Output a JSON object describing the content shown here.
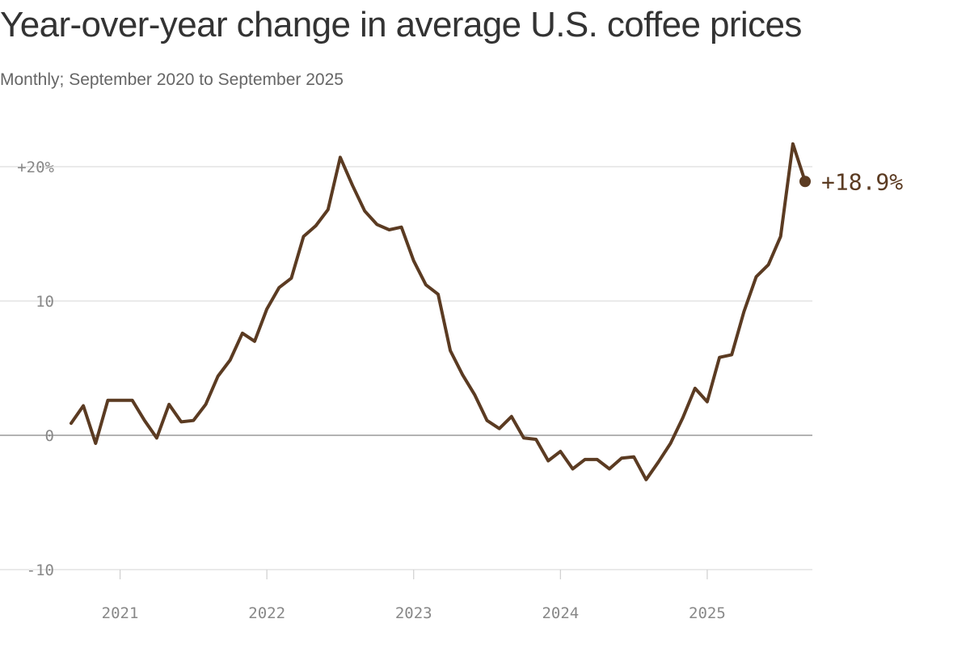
{
  "header": {
    "title": "Year-over-year change in average U.S. coffee prices",
    "subtitle": "Monthly; September 2020 to September 2025"
  },
  "chart_data": {
    "type": "line",
    "title": "Year-over-year change in average U.S. coffee prices",
    "subtitle": "Monthly; September 2020 to September 2025",
    "xlabel": "",
    "ylabel": "",
    "unit": "%",
    "ylim": [
      -10,
      23
    ],
    "grid": true,
    "line_color": "#5b3b22",
    "y_ticks": [
      {
        "value": 20,
        "label": "+20%"
      },
      {
        "value": 10,
        "label": "10"
      },
      {
        "value": 0,
        "label": "0"
      },
      {
        "value": -10,
        "label": "-10"
      }
    ],
    "x_ticks": [
      {
        "value": "2021-01",
        "label": "2021"
      },
      {
        "value": "2022-01",
        "label": "2022"
      },
      {
        "value": "2023-01",
        "label": "2023"
      },
      {
        "value": "2024-01",
        "label": "2024"
      },
      {
        "value": "2025-01",
        "label": "2025"
      }
    ],
    "end_label": "+18.9%",
    "series": [
      {
        "x": [
          "2020-09",
          "2020-10",
          "2020-11",
          "2020-12",
          "2021-01",
          "2021-02",
          "2021-03",
          "2021-04",
          "2021-05",
          "2021-06",
          "2021-07",
          "2021-08",
          "2021-09",
          "2021-10",
          "2021-11",
          "2021-12",
          "2022-01",
          "2022-02",
          "2022-03",
          "2022-04",
          "2022-05",
          "2022-06",
          "2022-07",
          "2022-08",
          "2022-09",
          "2022-10",
          "2022-11",
          "2022-12",
          "2023-01",
          "2023-02",
          "2023-03",
          "2023-04",
          "2023-05",
          "2023-06",
          "2023-07",
          "2023-08",
          "2023-09",
          "2023-10",
          "2023-11",
          "2023-12",
          "2024-01",
          "2024-02",
          "2024-03",
          "2024-04",
          "2024-05",
          "2024-06",
          "2024-07",
          "2024-08",
          "2024-09",
          "2024-10",
          "2024-11",
          "2024-12",
          "2025-01",
          "2025-02",
          "2025-03",
          "2025-04",
          "2025-05",
          "2025-06",
          "2025-07",
          "2025-08",
          "2025-09"
        ],
        "values": [
          0.9,
          2.2,
          -0.6,
          2.6,
          2.6,
          2.6,
          1.1,
          -0.2,
          2.3,
          1.0,
          1.1,
          2.3,
          4.4,
          5.6,
          7.6,
          7.0,
          9.4,
          11.0,
          11.7,
          14.8,
          15.6,
          16.8,
          20.7,
          18.6,
          16.7,
          15.7,
          15.3,
          15.5,
          13.0,
          11.2,
          10.5,
          6.3,
          4.5,
          3.0,
          1.1,
          0.5,
          1.4,
          -0.2,
          -0.3,
          -1.9,
          -1.2,
          -2.5,
          -1.8,
          -1.8,
          -2.5,
          -1.7,
          -1.6,
          -3.3,
          -2.0,
          -0.6,
          1.3,
          3.5,
          2.5,
          5.8,
          6.0,
          9.2,
          11.8,
          12.7,
          14.8,
          21.7,
          18.9
        ]
      }
    ]
  }
}
